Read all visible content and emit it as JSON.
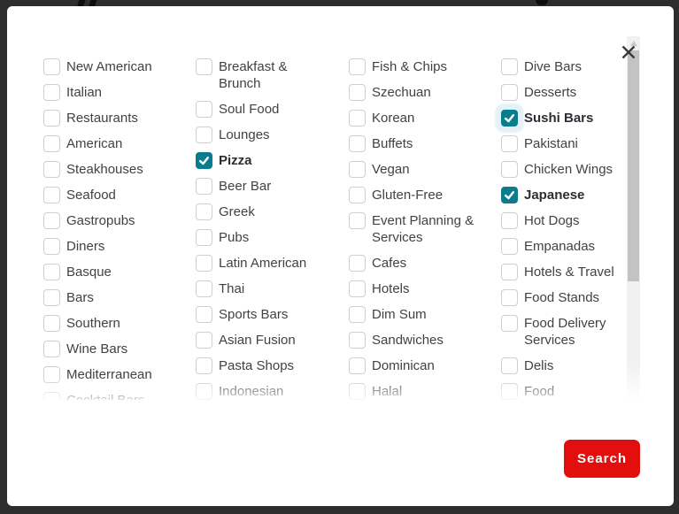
{
  "modal": {
    "close_icon": "x-close",
    "search_button": {
      "label": "Search"
    }
  },
  "colors": {
    "overlay": "#2d2d2d",
    "checkbox_checked": "#0b7c8d",
    "search_red": "#e30e0e"
  },
  "filters": {
    "columns": [
      {
        "items": [
          {
            "label": "New American",
            "checked": false
          },
          {
            "label": "Italian",
            "checked": false
          },
          {
            "label": "Restaurants",
            "checked": false
          },
          {
            "label": "American",
            "checked": false
          },
          {
            "label": "Steakhouses",
            "checked": false
          },
          {
            "label": "Seafood",
            "checked": false
          },
          {
            "label": "Gastropubs",
            "checked": false
          },
          {
            "label": "Diners",
            "checked": false
          },
          {
            "label": "Basque",
            "checked": false
          },
          {
            "label": "Bars",
            "checked": false
          },
          {
            "label": "Southern",
            "checked": false
          },
          {
            "label": "Wine Bars",
            "checked": false
          },
          {
            "label": "Mediterranean",
            "checked": false
          },
          {
            "label": "Cocktail Bars",
            "checked": false
          }
        ]
      },
      {
        "items": [
          {
            "label": "Breakfast & Brunch",
            "checked": false
          },
          {
            "label": "Soul Food",
            "checked": false
          },
          {
            "label": "Lounges",
            "checked": false
          },
          {
            "label": "Pizza",
            "checked": true
          },
          {
            "label": "Beer Bar",
            "checked": false
          },
          {
            "label": "Greek",
            "checked": false
          },
          {
            "label": "Pubs",
            "checked": false
          },
          {
            "label": "Latin American",
            "checked": false
          },
          {
            "label": "Thai",
            "checked": false
          },
          {
            "label": "Sports Bars",
            "checked": false
          },
          {
            "label": "Asian Fusion",
            "checked": false
          },
          {
            "label": "Pasta Shops",
            "checked": false
          },
          {
            "label": "Indonesian",
            "checked": false
          }
        ]
      },
      {
        "items": [
          {
            "label": "Fish & Chips",
            "checked": false
          },
          {
            "label": "Szechuan",
            "checked": false
          },
          {
            "label": "Korean",
            "checked": false
          },
          {
            "label": "Buffets",
            "checked": false
          },
          {
            "label": "Vegan",
            "checked": false
          },
          {
            "label": "Gluten-Free",
            "checked": false
          },
          {
            "label": "Event Planning & Services",
            "checked": false
          },
          {
            "label": "Cafes",
            "checked": false
          },
          {
            "label": "Hotels",
            "checked": false
          },
          {
            "label": "Dim Sum",
            "checked": false
          },
          {
            "label": "Sandwiches",
            "checked": false
          },
          {
            "label": "Dominican",
            "checked": false
          },
          {
            "label": "Halal",
            "checked": false
          }
        ]
      },
      {
        "items": [
          {
            "label": "Dive Bars",
            "checked": false
          },
          {
            "label": "Desserts",
            "checked": false
          },
          {
            "label": "Sushi Bars",
            "checked": true,
            "focused": true
          },
          {
            "label": "Pakistani",
            "checked": false
          },
          {
            "label": "Chicken Wings",
            "checked": false
          },
          {
            "label": "Japanese",
            "checked": true
          },
          {
            "label": "Hot Dogs",
            "checked": false
          },
          {
            "label": "Empanadas",
            "checked": false
          },
          {
            "label": "Hotels & Travel",
            "checked": false
          },
          {
            "label": "Food Stands",
            "checked": false
          },
          {
            "label": "Food Delivery Services",
            "checked": false
          },
          {
            "label": "Delis",
            "checked": false
          },
          {
            "label": "Food",
            "checked": false
          }
        ]
      }
    ]
  }
}
